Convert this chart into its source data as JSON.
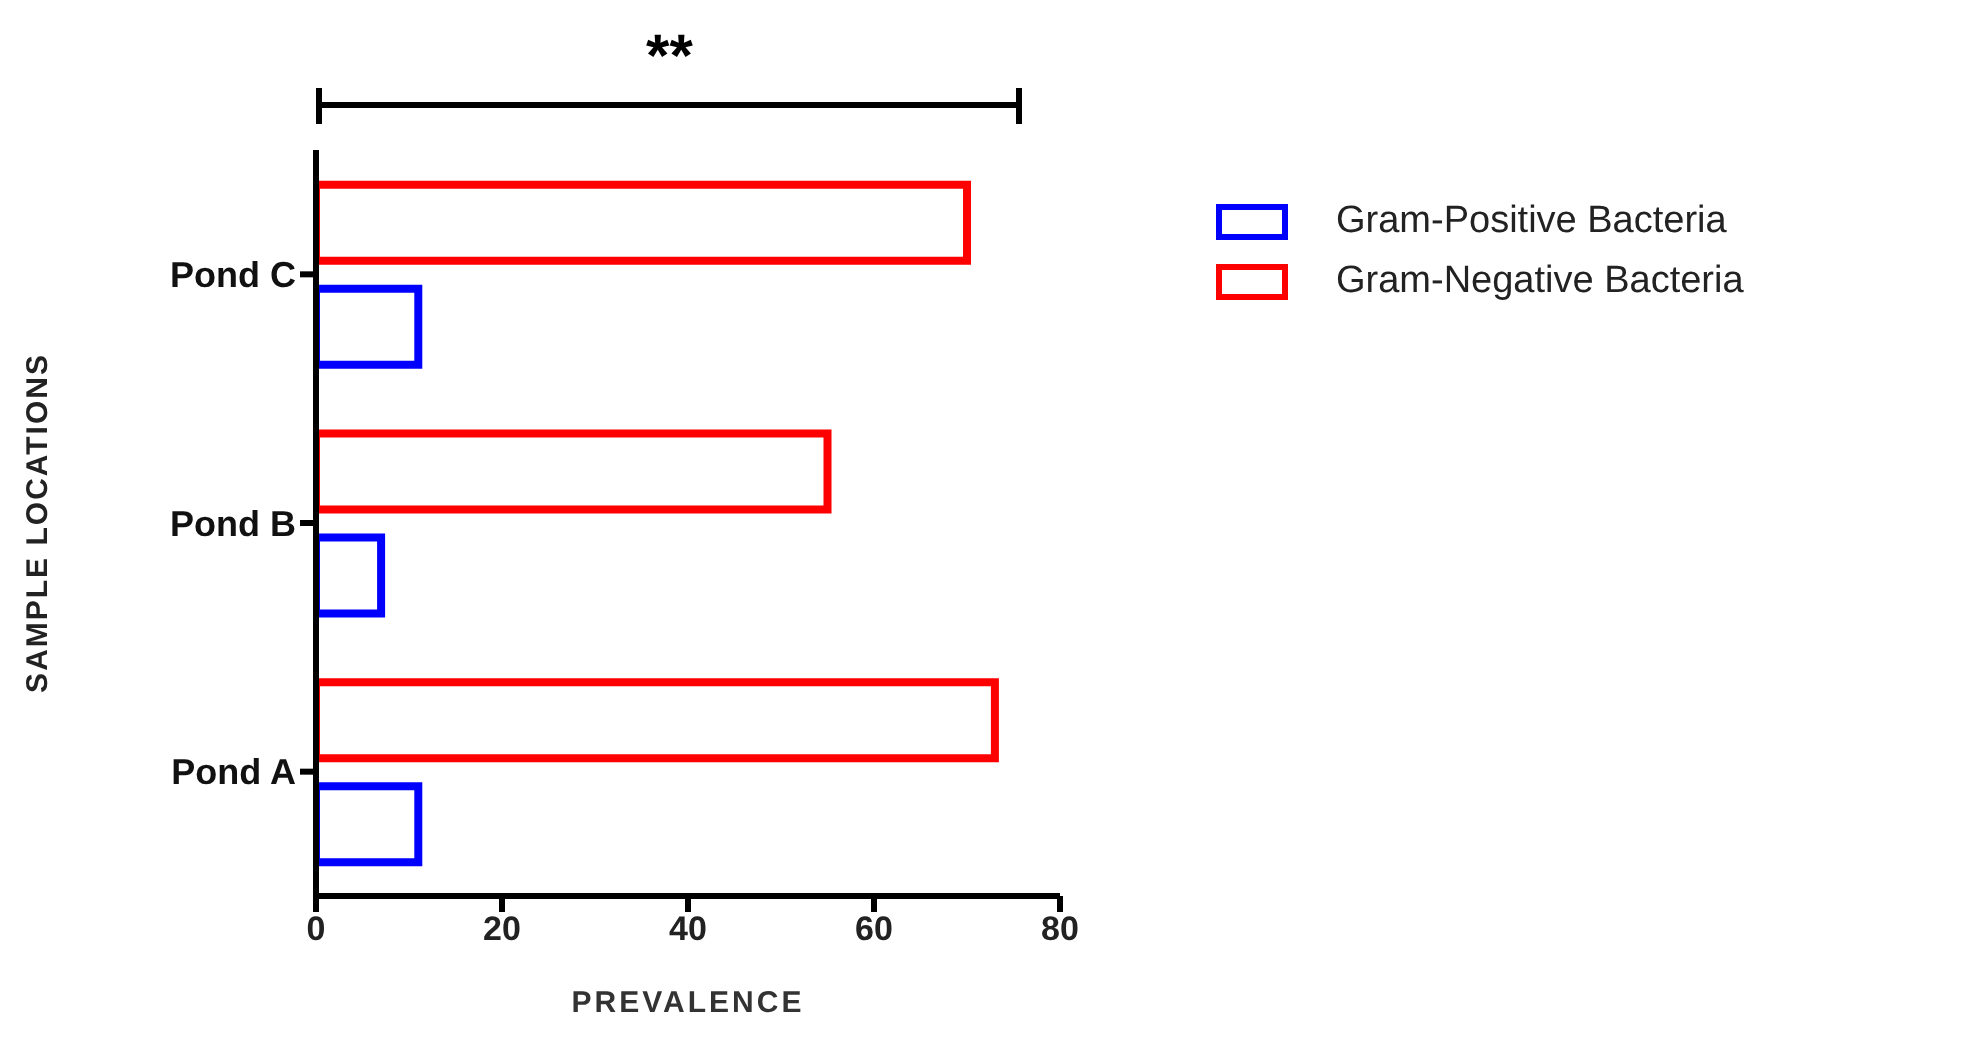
{
  "chart_data": {
    "type": "bar",
    "orientation": "horizontal",
    "categories": [
      "Pond C",
      "Pond B",
      "Pond A"
    ],
    "series": [
      {
        "name": "Gram-Positive Bacteria",
        "color": "#0000ff",
        "values": [
          11,
          7,
          11
        ]
      },
      {
        "name": "Gram-Negative Bacteria",
        "color": "#ff0000",
        "values": [
          70,
          55,
          73
        ]
      }
    ],
    "xlabel": "PREVALENCE",
    "ylabel": "SAMPLE LOCATIONS",
    "xlim": [
      0,
      80
    ],
    "xticks": [
      0,
      20,
      40,
      60,
      80
    ],
    "annotations": [
      "**"
    ],
    "legend": "right"
  }
}
